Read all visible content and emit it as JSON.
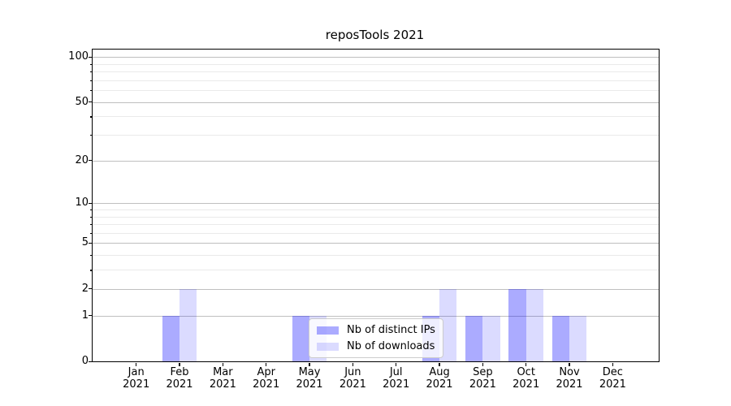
{
  "chart_data": {
    "type": "bar",
    "title": "reposTools 2021",
    "categories": [
      "Jan 2021",
      "Feb 2021",
      "Mar 2021",
      "Apr 2021",
      "May 2021",
      "Jun 2021",
      "Jul 2021",
      "Aug 2021",
      "Sep 2021",
      "Oct 2021",
      "Nov 2021",
      "Dec 2021"
    ],
    "series": [
      {
        "name": "Nb of distinct IPs",
        "color": "rgba(0,0,255,0.33)",
        "values": [
          0,
          1,
          0,
          0,
          1,
          0,
          0,
          1,
          1,
          2,
          1,
          0
        ]
      },
      {
        "name": "Nb of downloads",
        "color": "rgba(0,0,255,0.14)",
        "values": [
          0,
          2,
          0,
          0,
          1,
          0,
          0,
          2,
          1,
          2,
          1,
          0
        ]
      }
    ],
    "xlabel": "",
    "ylabel": "",
    "yscale": "log1p",
    "ylim": [
      0,
      112
    ],
    "y_ticks_major": [
      0,
      1,
      2,
      5,
      10,
      20,
      50,
      100
    ],
    "y_ticks_minor": [
      3,
      4,
      6,
      7,
      8,
      9,
      30,
      40,
      60,
      70,
      80,
      90
    ],
    "grid": true,
    "legend_position": "lower center"
  },
  "colors": {
    "grid_major": "#bfbfbf",
    "grid_minor": "#eaeaea",
    "spine": "#000000",
    "text": "#000000",
    "legend_border": "#cccccc",
    "legend_background": "rgba(255,255,255,0.8)"
  }
}
